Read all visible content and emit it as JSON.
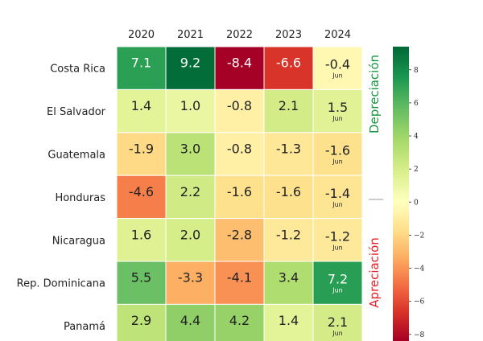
{
  "chart_data": {
    "type": "heatmap",
    "x": [
      "2020",
      "2021",
      "2022",
      "2023",
      "2024"
    ],
    "y": [
      "Costa Rica",
      "El Salvador",
      "Guatemala",
      "Honduras",
      "Nicaragua",
      "Rep. Dominicana",
      "Panamá"
    ],
    "values": [
      [
        7.1,
        9.2,
        -8.4,
        -6.6,
        -0.4
      ],
      [
        1.4,
        1.0,
        -0.8,
        2.1,
        1.5
      ],
      [
        -1.9,
        3.0,
        -0.8,
        -1.3,
        -1.6
      ],
      [
        -4.6,
        2.2,
        -1.6,
        -1.6,
        -1.4
      ],
      [
        1.6,
        2.0,
        -2.8,
        -1.2,
        -1.2
      ],
      [
        5.5,
        -3.3,
        -4.1,
        3.4,
        7.2
      ],
      [
        2.9,
        4.4,
        4.2,
        1.4,
        2.1
      ]
    ],
    "value_labels": [
      [
        "7.1",
        "9.2",
        "-8.4",
        "-6.6",
        "-0.4"
      ],
      [
        "1.4",
        "1.0",
        "-0.8",
        "2.1",
        "1.5"
      ],
      [
        "-1.9",
        "3.0",
        "-0.8",
        "-1.3",
        "-1.6"
      ],
      [
        "-4.6",
        "2.2",
        "-1.6",
        "-1.6",
        "-1.4"
      ],
      [
        "1.6",
        "2.0",
        "-2.8",
        "-1.2",
        "-1.2"
      ],
      [
        "5.5",
        "-3.3",
        "-4.1",
        "3.4",
        "7.2"
      ],
      [
        "2.9",
        "4.4",
        "4.2",
        "1.4",
        "2.1"
      ]
    ],
    "cell_note": "Jun",
    "cell_note_column": "2024",
    "colorbar": {
      "range": [
        -8.4,
        9.4
      ],
      "ticks": [
        "8",
        "6",
        "4",
        "2",
        "0",
        "−2",
        "−4",
        "−6",
        "−8"
      ],
      "tick_values": [
        8,
        6,
        4,
        2,
        0,
        -2,
        -4,
        -6,
        -8
      ],
      "colormap": "RdYlGn"
    },
    "side_labels": {
      "top": "Depreciación",
      "middle": "—",
      "bottom": "Apreciación"
    },
    "colors": {
      "top_label": "#1a9641",
      "bottom_label": "#e8212a",
      "middle": "#999999"
    }
  }
}
